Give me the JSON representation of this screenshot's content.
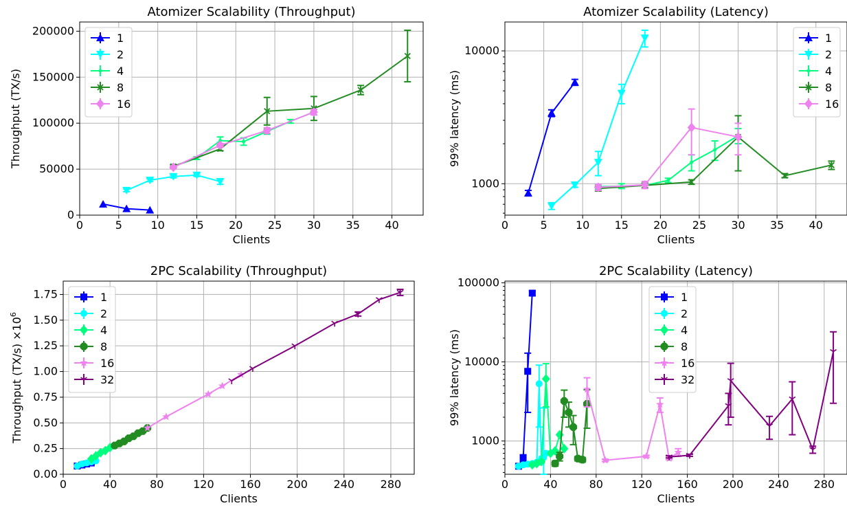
{
  "chart_data": [
    {
      "type": "line",
      "title": "Atomizer Scalability (Throughput)",
      "xlabel": "Clients",
      "ylabel": "Throughput (TX/s)",
      "ylabel_sup": "",
      "xlim": [
        0,
        44
      ],
      "ylim": [
        0,
        210000
      ],
      "yscale": "linear",
      "xticks": [
        0,
        5,
        10,
        15,
        20,
        25,
        30,
        35,
        40
      ],
      "xtick_labels": [
        "0",
        "5",
        "10",
        "15",
        "20",
        "25",
        "30",
        "35",
        "40"
      ],
      "yticks": [
        0,
        50000,
        100000,
        150000,
        200000
      ],
      "ytick_labels": [
        "0",
        "50000",
        "100000",
        "150000",
        "200000"
      ],
      "grid": true,
      "legend_position": "top-left",
      "series": [
        {
          "name": "1",
          "color": "#0000ff",
          "marker": "triangle-up",
          "x": [
            3,
            6,
            9
          ],
          "y": [
            12000,
            7000,
            5500
          ],
          "err": [
            0,
            0,
            0
          ]
        },
        {
          "name": "2",
          "color": "#00ffff",
          "marker": "triangle-down",
          "x": [
            6,
            9,
            12,
            15,
            18
          ],
          "y": [
            27000,
            38000,
            42000,
            43500,
            36500
          ],
          "err": [
            1500,
            1500,
            1500,
            1500,
            3000
          ]
        },
        {
          "name": "4",
          "color": "#00ff7f",
          "marker": "dot",
          "x": [
            12,
            15,
            18,
            21,
            24,
            27,
            30
          ],
          "y": [
            53000,
            62000,
            81000,
            80000,
            91000,
            102000,
            112000
          ],
          "err": [
            1500,
            1500,
            4000,
            4000,
            3000,
            2000,
            3000
          ]
        },
        {
          "name": "8",
          "color": "#228b22",
          "marker": "x",
          "x": [
            12,
            18,
            24,
            30,
            36,
            42
          ],
          "y": [
            53000,
            72000,
            113000,
            116000,
            136000,
            173000
          ],
          "err": [
            2000,
            2000,
            15000,
            13000,
            5000,
            28000
          ]
        },
        {
          "name": "16",
          "color": "#ee82ee",
          "marker": "diamond",
          "x": [
            12,
            18,
            24,
            30
          ],
          "y": [
            52000,
            76000,
            92000,
            112000
          ],
          "err": [
            1500,
            2000,
            3000,
            3000
          ]
        }
      ]
    },
    {
      "type": "line",
      "title": "Atomizer Scalability (Latency)",
      "xlabel": "Clients",
      "ylabel": "99% latency (ms)",
      "ylabel_sup": "",
      "xlim": [
        0,
        44
      ],
      "ylim": [
        580,
        16500
      ],
      "yscale": "log",
      "xticks": [
        0,
        5,
        10,
        15,
        20,
        25,
        30,
        35,
        40
      ],
      "xtick_labels": [
        "0",
        "5",
        "10",
        "15",
        "20",
        "25",
        "30",
        "35",
        "40"
      ],
      "yticks": [
        1000,
        10000
      ],
      "ytick_labels": [
        "1000",
        "10000"
      ],
      "grid": true,
      "legend_position": "top-right",
      "series": [
        {
          "name": "1",
          "color": "#0000ff",
          "marker": "triangle-up",
          "x": [
            3,
            6,
            9
          ],
          "y": [
            850,
            3400,
            5800
          ],
          "err": [
            40,
            200,
            300
          ]
        },
        {
          "name": "2",
          "color": "#00ffff",
          "marker": "triangle-down",
          "x": [
            6,
            9,
            12,
            15,
            18
          ],
          "y": [
            680,
            980,
            1450,
            4800,
            12500
          ],
          "err": [
            40,
            40,
            300,
            800,
            1800
          ]
        },
        {
          "name": "4",
          "color": "#00ff7f",
          "marker": "dot",
          "x": [
            12,
            15,
            18,
            21,
            24,
            27,
            30
          ],
          "y": [
            950,
            960,
            970,
            1060,
            1450,
            1800,
            2300
          ],
          "err": [
            40,
            40,
            40,
            40,
            200,
            300,
            300
          ]
        },
        {
          "name": "8",
          "color": "#228b22",
          "marker": "x",
          "x": [
            12,
            18,
            24,
            30,
            36,
            42
          ],
          "y": [
            920,
            970,
            1030,
            2250,
            1150,
            1380
          ],
          "err": [
            40,
            40,
            40,
            1000,
            40,
            100
          ]
        },
        {
          "name": "16",
          "color": "#ee82ee",
          "marker": "diamond",
          "x": [
            12,
            18,
            24,
            30
          ],
          "y": [
            940,
            980,
            2650,
            2250
          ],
          "err": [
            50,
            60,
            1000,
            600
          ]
        }
      ]
    },
    {
      "type": "line",
      "title": "2PC Scalability (Throughput)",
      "xlabel": "Clients",
      "ylabel": "Throughput (TX/s) ×10",
      "ylabel_sup": "6",
      "xlim": [
        0,
        300
      ],
      "ylim": [
        0,
        1.88
      ],
      "yscale": "linear",
      "xticks": [
        0,
        40,
        80,
        120,
        160,
        200,
        240,
        280
      ],
      "xtick_labels": [
        "0",
        "40",
        "80",
        "120",
        "160",
        "200",
        "240",
        "280"
      ],
      "yticks": [
        0,
        0.25,
        0.5,
        0.75,
        1.0,
        1.25,
        1.5,
        1.75
      ],
      "ytick_labels": [
        "0.00",
        "0.25",
        "0.50",
        "0.75",
        "1.00",
        "1.25",
        "1.50",
        "1.75"
      ],
      "grid": true,
      "legend_position": "top-left",
      "series": [
        {
          "name": "1",
          "color": "#0000ff",
          "marker": "square",
          "x": [
            12,
            16,
            20,
            24
          ],
          "y": [
            0.08,
            0.09,
            0.1,
            0.11
          ],
          "err": [
            0,
            0,
            0,
            0
          ]
        },
        {
          "name": "2",
          "color": "#00ffff",
          "marker": "circle",
          "x": [
            12,
            16,
            20,
            24,
            28
          ],
          "y": [
            0.08,
            0.1,
            0.11,
            0.12,
            0.13
          ],
          "err": [
            0,
            0,
            0,
            0,
            0
          ]
        },
        {
          "name": "4",
          "color": "#00ff7f",
          "marker": "diamond",
          "x": [
            24,
            28,
            32,
            36,
            40
          ],
          "y": [
            0.15,
            0.18,
            0.21,
            0.23,
            0.26
          ],
          "err": [
            0,
            0,
            0,
            0,
            0
          ]
        },
        {
          "name": "8",
          "color": "#228b22",
          "marker": "octagon",
          "x": [
            44,
            48,
            52,
            56,
            60,
            64,
            68,
            72
          ],
          "y": [
            0.28,
            0.3,
            0.32,
            0.35,
            0.37,
            0.4,
            0.42,
            0.45
          ],
          "err": [
            0,
            0,
            0,
            0,
            0,
            0,
            0,
            0
          ]
        },
        {
          "name": "16",
          "color": "#ee82ee",
          "marker": "star",
          "x": [
            72,
            88,
            124,
            136,
            152
          ],
          "y": [
            0.45,
            0.56,
            0.78,
            0.86,
            0.97
          ],
          "err": [
            0,
            0,
            0,
            0,
            0
          ]
        },
        {
          "name": "32",
          "color": "#800080",
          "marker": "tri",
          "x": [
            144,
            162,
            198,
            232,
            252,
            270,
            288
          ],
          "y": [
            0.91,
            1.03,
            1.25,
            1.47,
            1.56,
            1.7,
            1.77
          ],
          "err": [
            0,
            0,
            0,
            0,
            0.02,
            0,
            0.03
          ]
        }
      ]
    },
    {
      "type": "line",
      "title": "2PC Scalability (Latency)",
      "xlabel": "Clients",
      "ylabel": "99% latency (ms)",
      "ylabel_sup": "",
      "xlim": [
        0,
        300
      ],
      "ylim": [
        380,
        105000
      ],
      "yscale": "log",
      "xticks": [
        0,
        40,
        80,
        120,
        160,
        200,
        240,
        280
      ],
      "xtick_labels": [
        "0",
        "40",
        "80",
        "120",
        "160",
        "200",
        "240",
        "280"
      ],
      "yticks": [
        1000,
        10000,
        100000
      ],
      "ytick_labels": [
        "1000",
        "10000",
        "100000"
      ],
      "grid": true,
      "legend_position": "upper-center",
      "series": [
        {
          "name": "1",
          "color": "#0000ff",
          "marker": "square",
          "x": [
            12,
            16,
            20,
            24
          ],
          "y": [
            480,
            610,
            7600,
            74000
          ],
          "err": [
            20,
            60,
            5300,
            5000
          ]
        },
        {
          "name": "2",
          "color": "#00ffff",
          "marker": "circle",
          "x": [
            12,
            16,
            20,
            24,
            28,
            30,
            32,
            34,
            36
          ],
          "y": [
            480,
            500,
            510,
            520,
            540,
            5300,
            600,
            620,
            700
          ],
          "err": [
            20,
            20,
            20,
            20,
            20,
            3800,
            0,
            2000,
            0
          ]
        },
        {
          "name": "4",
          "color": "#00ff7f",
          "marker": "diamond",
          "x": [
            24,
            28,
            32,
            36,
            40,
            44,
            48,
            52
          ],
          "y": [
            500,
            520,
            550,
            6100,
            700,
            750,
            1200,
            800
          ],
          "err": [
            20,
            20,
            20,
            3400,
            0,
            0,
            0,
            0
          ]
        },
        {
          "name": "8",
          "color": "#228b22",
          "marker": "octagon",
          "x": [
            44,
            48,
            52,
            56,
            60,
            64,
            68,
            72
          ],
          "y": [
            520,
            640,
            3200,
            2300,
            1500,
            600,
            580,
            2950
          ],
          "err": [
            40,
            80,
            1200,
            800,
            600,
            40,
            40,
            1500
          ]
        },
        {
          "name": "16",
          "color": "#ee82ee",
          "marker": "star",
          "x": [
            72,
            88,
            124,
            136,
            144,
            152
          ],
          "y": [
            4500,
            570,
            640,
            2900,
            600,
            720
          ],
          "err": [
            1800,
            20,
            20,
            600,
            20,
            80
          ]
        },
        {
          "name": "32",
          "color": "#800080",
          "marker": "tri",
          "x": [
            144,
            162,
            196,
            198,
            232,
            252,
            270,
            288
          ],
          "y": [
            630,
            660,
            2800,
            5800,
            1550,
            3400,
            780,
            13500
          ],
          "err": [
            20,
            20,
            1200,
            3800,
            500,
            2200,
            80,
            10500
          ]
        }
      ]
    }
  ]
}
